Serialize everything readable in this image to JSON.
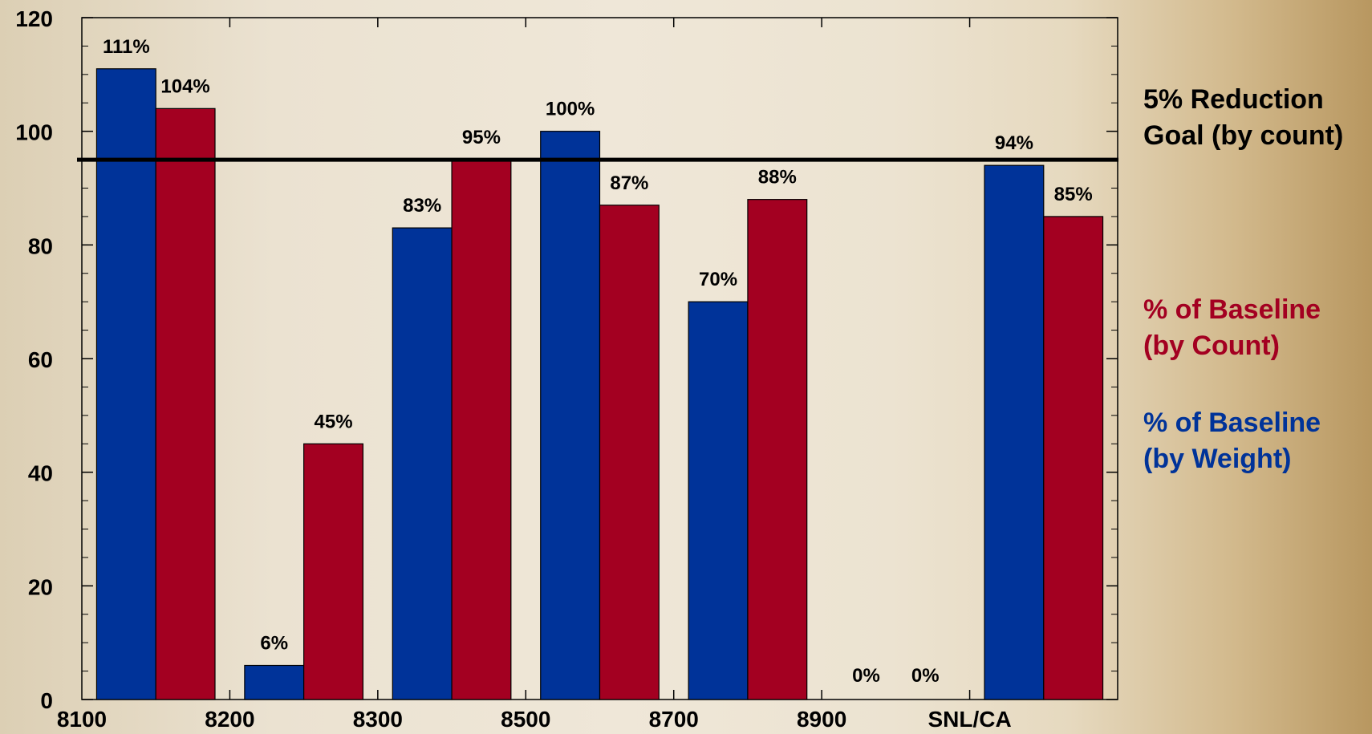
{
  "chart_data": {
    "type": "bar",
    "categories": [
      "8100",
      "8200",
      "8300",
      "8500",
      "8700",
      "8900",
      "SNL/CA"
    ],
    "series": [
      {
        "name": "% of Baseline (by Weight)",
        "color": "#003399",
        "values": [
          111,
          6,
          83,
          100,
          70,
          0,
          94
        ],
        "labels": [
          "111%",
          "6%",
          "83%",
          "100%",
          "70%",
          "0%",
          "94%"
        ]
      },
      {
        "name": "% of Baseline (by Count)",
        "color": "#a30021",
        "values": [
          104,
          45,
          95,
          87,
          88,
          0,
          85
        ],
        "labels": [
          "104%",
          "45%",
          "95%",
          "87%",
          "88%",
          "0%",
          "85%"
        ]
      }
    ],
    "reference_line": {
      "value": 95,
      "label": "5% Reduction Goal (by count)"
    },
    "ylim": [
      0,
      120
    ],
    "yticks": [
      "0",
      "20",
      "40",
      "60",
      "80",
      "100",
      "120"
    ],
    "xlabel": "",
    "ylabel": "",
    "title": ""
  },
  "legend": {
    "goal_line1": "5% Reduction",
    "goal_line2": "Goal (by count)",
    "count_line1": "% of Baseline",
    "count_line2": "(by Count)",
    "weight_line1": "% of Baseline",
    "weight_line2": "(by Weight)"
  },
  "colors": {
    "weight": "#003399",
    "count": "#a30021",
    "goal": "#000000"
  }
}
